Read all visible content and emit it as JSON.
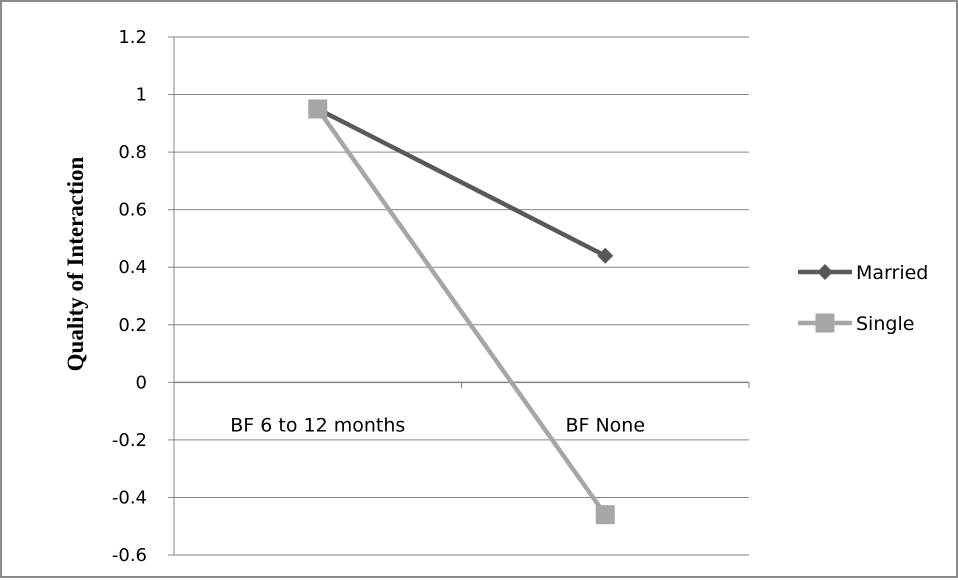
{
  "chart_data": {
    "type": "line",
    "title": "",
    "xlabel": "",
    "ylabel": "Quality of Interaction",
    "categories": [
      "BF 6 to 12 months",
      "BF None"
    ],
    "ylim": [
      -0.6,
      1.2
    ],
    "yticks": [
      "1.2",
      "1",
      "0.8",
      "0.6",
      "0.4",
      "0.2",
      "0",
      "-0.2",
      "-0.4",
      "-0.6"
    ],
    "ytick_values": [
      1.2,
      1,
      0.8,
      0.6,
      0.4,
      0.2,
      0,
      -0.2,
      -0.4,
      -0.6
    ],
    "grid": true,
    "legend_position": "right",
    "series": [
      {
        "name": "Married",
        "values": [
          0.95,
          0.44
        ],
        "color": "#595959",
        "marker": "diamond"
      },
      {
        "name": "Single",
        "values": [
          0.95,
          -0.46
        ],
        "color": "#a6a6a6",
        "marker": "square"
      }
    ]
  }
}
